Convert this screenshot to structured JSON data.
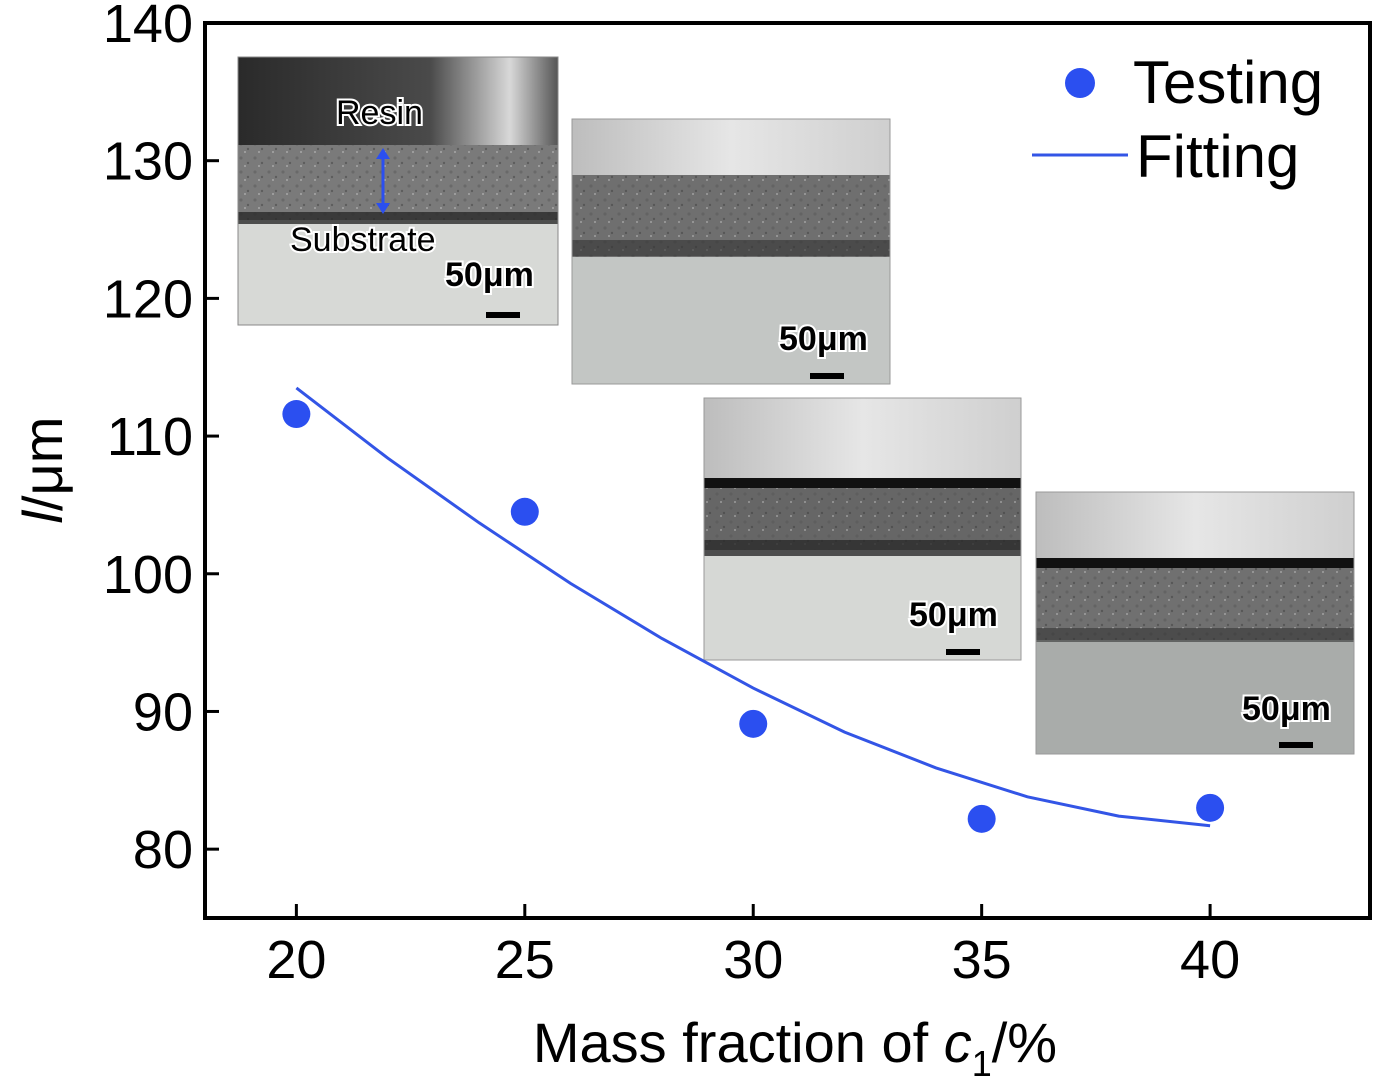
{
  "chart_data": {
    "type": "scatter",
    "title": "",
    "xlabel": {
      "prefix": "Mass fraction of ",
      "var": "c",
      "sub": "1",
      "suffix": "/%"
    },
    "ylabel": {
      "var": "l",
      "suffix": "/μm"
    },
    "xlim": [
      18,
      43.5
    ],
    "ylim": [
      75,
      140
    ],
    "xticks": [
      20,
      25,
      30,
      35,
      40
    ],
    "yticks": [
      80,
      90,
      100,
      110,
      120,
      130,
      140
    ],
    "legend_position": "top-right",
    "series": [
      {
        "name": "Testing",
        "kind": "points",
        "color": "#2b4ff0",
        "x": [
          20,
          25,
          30,
          35,
          40
        ],
        "y": [
          111.6,
          104.5,
          89.1,
          82.2,
          83.0
        ]
      },
      {
        "name": "Fitting",
        "kind": "line",
        "color": "#3355e6",
        "x": [
          20,
          22,
          24,
          26,
          28,
          30,
          32,
          34,
          36,
          38,
          40
        ],
        "y": [
          113.5,
          108.4,
          103.7,
          99.3,
          95.3,
          91.7,
          88.5,
          85.9,
          83.8,
          82.4,
          81.7
        ]
      }
    ],
    "insets": [
      {
        "labels": [
          "Resin",
          "Substrate"
        ],
        "scale_bar": "50μm"
      },
      {
        "labels": [],
        "scale_bar": "50μm"
      },
      {
        "labels": [],
        "scale_bar": "50μm"
      },
      {
        "labels": [],
        "scale_bar": "50μm"
      }
    ]
  }
}
